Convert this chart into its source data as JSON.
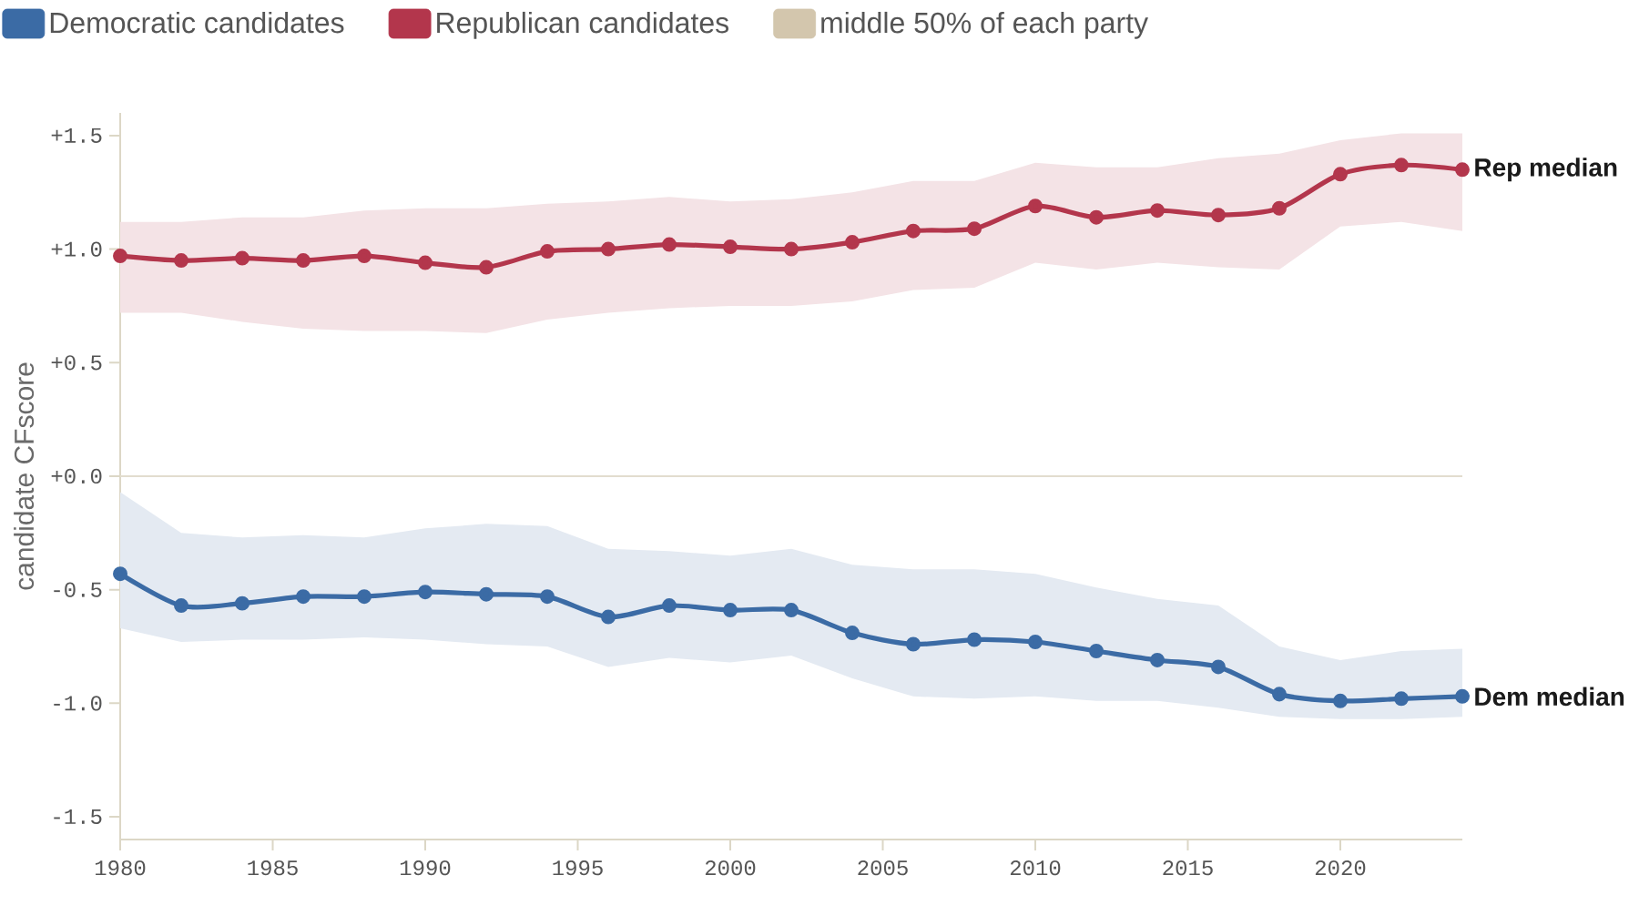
{
  "chart_data": {
    "type": "line",
    "ylabel": "candidate CFscore",
    "x": [
      1980,
      1982,
      1984,
      1986,
      1988,
      1990,
      1992,
      1994,
      1996,
      1998,
      2000,
      2002,
      2004,
      2006,
      2008,
      2010,
      2012,
      2014,
      2016,
      2018,
      2020,
      2022,
      2024
    ],
    "series": [
      {
        "name": "Democratic candidates",
        "color": "#3b6ba5",
        "values": [
          -0.43,
          -0.57,
          -0.56,
          -0.53,
          -0.53,
          -0.51,
          -0.52,
          -0.53,
          -0.62,
          -0.57,
          -0.59,
          -0.59,
          -0.69,
          -0.74,
          -0.72,
          -0.73,
          -0.77,
          -0.81,
          -0.84,
          -0.96,
          -0.99,
          -0.98,
          -0.97
        ],
        "lower": [
          -0.67,
          -0.73,
          -0.72,
          -0.72,
          -0.71,
          -0.72,
          -0.74,
          -0.75,
          -0.84,
          -0.8,
          -0.82,
          -0.79,
          -0.89,
          -0.97,
          -0.98,
          -0.97,
          -0.99,
          -0.99,
          -1.02,
          -1.06,
          -1.07,
          -1.07,
          -1.06
        ],
        "upper": [
          -0.07,
          -0.25,
          -0.27,
          -0.26,
          -0.27,
          -0.23,
          -0.21,
          -0.22,
          -0.32,
          -0.33,
          -0.35,
          -0.32,
          -0.39,
          -0.41,
          -0.41,
          -0.43,
          -0.49,
          -0.54,
          -0.57,
          -0.75,
          -0.81,
          -0.77,
          -0.76
        ]
      },
      {
        "name": "Republican candidates",
        "color": "#b3364c",
        "values": [
          0.97,
          0.95,
          0.96,
          0.95,
          0.97,
          0.94,
          0.92,
          0.99,
          1.0,
          1.02,
          1.01,
          1.0,
          1.03,
          1.08,
          1.09,
          1.19,
          1.14,
          1.17,
          1.15,
          1.18,
          1.33,
          1.37,
          1.35
        ],
        "lower": [
          0.72,
          0.72,
          0.68,
          0.65,
          0.64,
          0.64,
          0.63,
          0.69,
          0.72,
          0.74,
          0.75,
          0.75,
          0.77,
          0.82,
          0.83,
          0.94,
          0.91,
          0.94,
          0.92,
          0.91,
          1.1,
          1.12,
          1.08
        ],
        "upper": [
          1.12,
          1.12,
          1.14,
          1.14,
          1.17,
          1.18,
          1.18,
          1.2,
          1.21,
          1.23,
          1.21,
          1.22,
          1.25,
          1.3,
          1.3,
          1.38,
          1.36,
          1.36,
          1.4,
          1.42,
          1.48,
          1.51,
          1.51
        ]
      }
    ],
    "annotations": [
      {
        "text": "Rep median",
        "x": 2024,
        "y": 1.35
      },
      {
        "text": "Dem median",
        "x": 2024,
        "y": -0.97
      },
      "middle 50% of each party"
    ],
    "xlim": [
      1980,
      2024
    ],
    "ylim": [
      -1.6,
      1.6
    ],
    "xticks": [
      1980,
      1985,
      1990,
      1995,
      2000,
      2005,
      2010,
      2015,
      2020
    ],
    "yticks": [
      {
        "value": 1.5,
        "label": "+1.5"
      },
      {
        "value": 1,
        "label": "+1.0"
      },
      {
        "value": 0.5,
        "label": "+0.5"
      },
      {
        "value": 0,
        "label": "+0.0"
      },
      {
        "value": -0.5,
        "label": "-0.5"
      },
      {
        "value": -1,
        "label": "-1.0"
      },
      {
        "value": -1.5,
        "label": "-1.5"
      }
    ],
    "ref_lines": [
      {
        "axis": "y",
        "value": 0,
        "color": "#e2ddcf"
      }
    ],
    "legend": "top left",
    "marker": "circle",
    "line_style": "solid"
  }
}
